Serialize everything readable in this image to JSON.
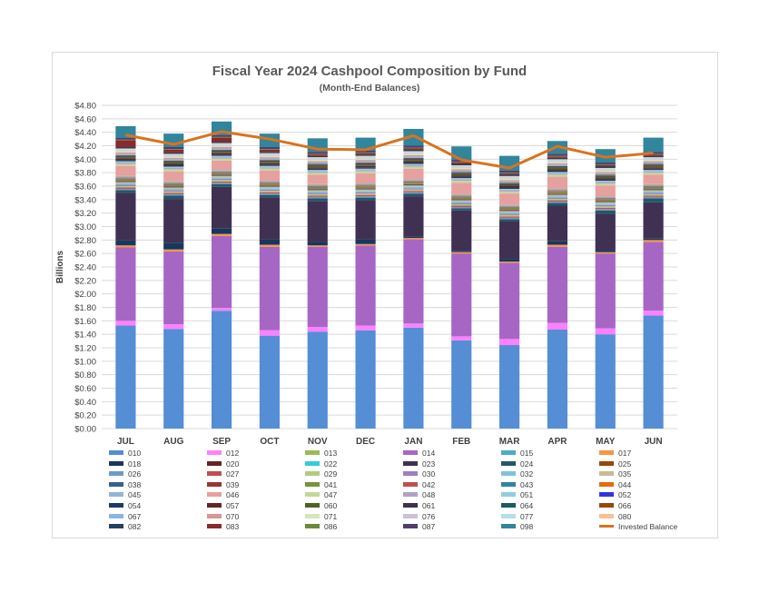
{
  "chart_data": {
    "type": "bar",
    "stacked": true,
    "title": "Fiscal Year 2024 Cashpool Composition by Fund",
    "subtitle": "(Month-End Balances)",
    "ylabel": "Billions",
    "xlabel": "",
    "ylim": [
      0,
      4.8
    ],
    "ytick_step": 0.2,
    "yticks": [
      "$0.00",
      "$0.20",
      "$0.40",
      "$0.60",
      "$0.80",
      "$1.00",
      "$1.20",
      "$1.40",
      "$1.60",
      "$1.80",
      "$2.00",
      "$2.20",
      "$2.40",
      "$2.60",
      "$2.80",
      "$3.00",
      "$3.20",
      "$3.40",
      "$3.60",
      "$3.80",
      "$4.00",
      "$4.20",
      "$4.40",
      "$4.60",
      "$4.80"
    ],
    "grid": true,
    "legend_position": "bottom",
    "categories": [
      "JUL",
      "AUG",
      "SEP",
      "OCT",
      "NOV",
      "DEC",
      "JAN",
      "FEB",
      "MAR",
      "APR",
      "MAY",
      "JUN"
    ],
    "series": [
      {
        "name": "010",
        "color": "#558ed5",
        "values": [
          1.53,
          1.48,
          1.75,
          1.38,
          1.44,
          1.46,
          1.5,
          1.31,
          1.24,
          1.47,
          1.4,
          1.68
        ]
      },
      {
        "name": "012",
        "color": "#ff80ff",
        "values": [
          0.07,
          0.07,
          0.04,
          0.08,
          0.07,
          0.07,
          0.06,
          0.06,
          0.09,
          0.1,
          0.09,
          0.07
        ]
      },
      {
        "name": "013",
        "color": "#9bbb59",
        "values": [
          0,
          0,
          0,
          0,
          0,
          0,
          0,
          0,
          0,
          0,
          0,
          0
        ]
      },
      {
        "name": "014",
        "color": "#a667c4",
        "values": [
          1.09,
          1.08,
          1.07,
          1.24,
          1.19,
          1.19,
          1.25,
          1.23,
          1.13,
          1.13,
          1.11,
          1.02
        ]
      },
      {
        "name": "015",
        "color": "#4bacc6",
        "values": [
          0,
          0,
          0,
          0,
          0,
          0,
          0,
          0,
          0,
          0,
          0,
          0
        ]
      },
      {
        "name": "017",
        "color": "#f79646",
        "values": [
          0.03,
          0.03,
          0.03,
          0.03,
          0.02,
          0.02,
          0.02,
          0.02,
          0.02,
          0.03,
          0.02,
          0.03
        ]
      },
      {
        "name": "018",
        "color": "#17375e",
        "values": [
          0.08,
          0.1,
          0.08,
          0.08,
          0.05,
          0.07,
          0.02,
          0.02,
          0.04,
          0.05,
          0.03,
          0.02
        ]
      },
      {
        "name": "020",
        "color": "#632523",
        "values": [
          0,
          0,
          0,
          0,
          0,
          0,
          0,
          0,
          0,
          0,
          0,
          0
        ]
      },
      {
        "name": "022",
        "color": "#33ccdd",
        "values": [
          0,
          0,
          0,
          0,
          0,
          0,
          0,
          0,
          0,
          0,
          0,
          0
        ]
      },
      {
        "name": "023",
        "color": "#403152",
        "values": [
          0.7,
          0.65,
          0.62,
          0.62,
          0.61,
          0.58,
          0.6,
          0.6,
          0.56,
          0.53,
          0.54,
          0.54
        ]
      },
      {
        "name": "024",
        "color": "#215968",
        "values": [
          0.04,
          0.05,
          0.04,
          0.04,
          0.04,
          0.04,
          0.04,
          0.03,
          0.03,
          0.04,
          0.05,
          0.06
        ]
      },
      {
        "name": "025",
        "color": "#974806",
        "values": [
          0,
          0,
          0,
          0,
          0,
          0,
          0,
          0,
          0,
          0,
          0,
          0
        ]
      },
      {
        "name": "026",
        "color": "#7199c9",
        "values": [
          0.02,
          0.02,
          0.02,
          0.02,
          0.02,
          0.02,
          0.02,
          0.02,
          0.02,
          0.02,
          0.02,
          0.02
        ]
      },
      {
        "name": "027",
        "color": "#c0504d",
        "values": [
          0.02,
          0.02,
          0.02,
          0.02,
          0.02,
          0.02,
          0.02,
          0.02,
          0.02,
          0.02,
          0.02,
          0.02
        ]
      },
      {
        "name": "029",
        "color": "#b0cc80",
        "values": [
          0.02,
          0.02,
          0.02,
          0.02,
          0.02,
          0.02,
          0.02,
          0.02,
          0.02,
          0.02,
          0.02,
          0.02
        ]
      },
      {
        "name": "030",
        "color": "#9e7fbf",
        "values": [
          0.02,
          0.02,
          0.02,
          0.02,
          0.02,
          0.02,
          0.02,
          0.02,
          0.02,
          0.02,
          0.02,
          0.02
        ]
      },
      {
        "name": "032",
        "color": "#7fc4d6",
        "values": [
          0.02,
          0.02,
          0.02,
          0.02,
          0.02,
          0.02,
          0.02,
          0.02,
          0.02,
          0.02,
          0.02,
          0.02
        ]
      },
      {
        "name": "035",
        "color": "#c4bd97",
        "values": [
          0.02,
          0.02,
          0.02,
          0.02,
          0.02,
          0.02,
          0.02,
          0.02,
          0.02,
          0.02,
          0.02,
          0.02
        ]
      },
      {
        "name": "038",
        "color": "#366092",
        "values": [
          0.01,
          0.01,
          0.01,
          0.01,
          0.01,
          0.01,
          0.01,
          0.01,
          0.01,
          0.01,
          0.01,
          0.01
        ]
      },
      {
        "name": "039",
        "color": "#953735",
        "values": [
          0.01,
          0.01,
          0.01,
          0.01,
          0.01,
          0.01,
          0.01,
          0.01,
          0.01,
          0.01,
          0.01,
          0.01
        ]
      },
      {
        "name": "041",
        "color": "#77933c",
        "values": [
          0.02,
          0.02,
          0.02,
          0.02,
          0.02,
          0.02,
          0.02,
          0.02,
          0.02,
          0.02,
          0.02,
          0.02
        ]
      },
      {
        "name": "042",
        "color": "#c0504d",
        "values": [
          0.01,
          0.01,
          0.01,
          0.01,
          0.01,
          0.01,
          0.01,
          0.01,
          0.01,
          0.01,
          0.01,
          0.01
        ]
      },
      {
        "name": "043",
        "color": "#31859c",
        "values": [
          0.01,
          0.01,
          0.01,
          0.01,
          0.01,
          0.01,
          0.01,
          0.01,
          0.01,
          0.01,
          0.01,
          0.01
        ]
      },
      {
        "name": "044",
        "color": "#e46c0a",
        "values": [
          0.01,
          0.01,
          0.01,
          0.01,
          0.01,
          0.01,
          0.01,
          0.01,
          0.01,
          0.01,
          0.01,
          0.01
        ]
      },
      {
        "name": "045",
        "color": "#95b3d7",
        "values": [
          0.02,
          0.02,
          0.02,
          0.02,
          0.02,
          0.02,
          0.02,
          0.02,
          0.02,
          0.02,
          0.02,
          0.02
        ]
      },
      {
        "name": "046",
        "color": "#e6a09e",
        "values": [
          0.15,
          0.15,
          0.14,
          0.15,
          0.14,
          0.15,
          0.16,
          0.17,
          0.17,
          0.18,
          0.16,
          0.14
        ]
      },
      {
        "name": "047",
        "color": "#c4d79b",
        "values": [
          0.03,
          0.03,
          0.03,
          0.03,
          0.03,
          0.03,
          0.03,
          0.03,
          0.03,
          0.03,
          0.03,
          0.03
        ]
      },
      {
        "name": "048",
        "color": "#b2a1c7",
        "values": [
          0.02,
          0.02,
          0.02,
          0.02,
          0.02,
          0.02,
          0.02,
          0.02,
          0.02,
          0.02,
          0.02,
          0.02
        ]
      },
      {
        "name": "051",
        "color": "#93cddd",
        "values": [
          0.02,
          0.02,
          0.02,
          0.02,
          0.02,
          0.02,
          0.02,
          0.02,
          0.02,
          0.02,
          0.02,
          0.02
        ]
      },
      {
        "name": "052",
        "color": "#3333dd",
        "values": [
          0,
          0,
          0,
          0,
          0,
          0,
          0,
          0,
          0,
          0,
          0,
          0
        ]
      },
      {
        "name": "054",
        "color": "#1f3864",
        "values": [
          0.02,
          0.02,
          0.02,
          0.02,
          0.02,
          0.02,
          0.02,
          0.02,
          0.02,
          0.02,
          0.02,
          0.02
        ]
      },
      {
        "name": "057",
        "color": "#632523",
        "values": [
          0.02,
          0.02,
          0.02,
          0.02,
          0.02,
          0.02,
          0.02,
          0.02,
          0.02,
          0.02,
          0.02,
          0.02
        ]
      },
      {
        "name": "060",
        "color": "#4f6228",
        "values": [
          0.02,
          0.02,
          0.02,
          0.02,
          0.02,
          0.02,
          0.02,
          0.02,
          0.02,
          0.02,
          0.02,
          0.02
        ]
      },
      {
        "name": "061",
        "color": "#3f3151",
        "values": [
          0.01,
          0.01,
          0.01,
          0.01,
          0.01,
          0.01,
          0.01,
          0.01,
          0.01,
          0.01,
          0.01,
          0.01
        ]
      },
      {
        "name": "064",
        "color": "#205867",
        "values": [
          0.01,
          0.01,
          0.01,
          0.01,
          0.01,
          0.01,
          0.01,
          0.01,
          0.01,
          0.01,
          0.01,
          0.01
        ]
      },
      {
        "name": "066",
        "color": "#984807",
        "values": [
          0.01,
          0.01,
          0.01,
          0.01,
          0.01,
          0.01,
          0.01,
          0.01,
          0.01,
          0.01,
          0.01,
          0.01
        ]
      },
      {
        "name": "067",
        "color": "#8db4e2",
        "values": [
          0.02,
          0.02,
          0.02,
          0.02,
          0.02,
          0.02,
          0.02,
          0.02,
          0.02,
          0.02,
          0.02,
          0.02
        ]
      },
      {
        "name": "070",
        "color": "#d99694",
        "values": [
          0.02,
          0.02,
          0.02,
          0.02,
          0.02,
          0.02,
          0.02,
          0.02,
          0.02,
          0.02,
          0.02,
          0.02
        ]
      },
      {
        "name": "071",
        "color": "#d7e4bc",
        "values": [
          0.02,
          0.02,
          0.02,
          0.02,
          0.02,
          0.02,
          0.02,
          0.02,
          0.02,
          0.02,
          0.02,
          0.02
        ]
      },
      {
        "name": "076",
        "color": "#ccc0da",
        "values": [
          0.01,
          0.01,
          0.01,
          0.01,
          0.01,
          0.01,
          0.01,
          0.01,
          0.01,
          0.01,
          0.01,
          0.01
        ]
      },
      {
        "name": "077",
        "color": "#b7dee8",
        "values": [
          0.02,
          0.02,
          0.02,
          0.02,
          0.02,
          0.02,
          0.02,
          0.02,
          0.02,
          0.02,
          0.02,
          0.02
        ]
      },
      {
        "name": "080",
        "color": "#fac090",
        "values": [
          0.01,
          0.01,
          0.01,
          0.01,
          0.01,
          0.01,
          0.01,
          0.01,
          0.01,
          0.01,
          0.01,
          0.01
        ]
      },
      {
        "name": "082",
        "color": "#254061",
        "values": [
          0.02,
          0.02,
          0.02,
          0.02,
          0.02,
          0.02,
          0.02,
          0.02,
          0.02,
          0.02,
          0.02,
          0.02
        ]
      },
      {
        "name": "083",
        "color": "#8b2a2a",
        "values": [
          0.1,
          0.04,
          0.06,
          0.03,
          0.02,
          0.02,
          0.02,
          0.02,
          0.02,
          0.02,
          0.02,
          0.02
        ]
      },
      {
        "name": "086",
        "color": "#6a8a3a",
        "values": [
          0.01,
          0.01,
          0.01,
          0.01,
          0.01,
          0.01,
          0.01,
          0.01,
          0.01,
          0.01,
          0.01,
          0.01
        ]
      },
      {
        "name": "087",
        "color": "#4f3d6e",
        "values": [
          0.03,
          0.03,
          0.03,
          0.03,
          0.03,
          0.03,
          0.03,
          0.03,
          0.03,
          0.03,
          0.03,
          0.03
        ]
      },
      {
        "name": "098",
        "color": "#31859c",
        "values": [
          0.17,
          0.2,
          0.2,
          0.2,
          0.2,
          0.19,
          0.25,
          0.2,
          0.22,
          0.19,
          0.2,
          0.21
        ]
      }
    ],
    "line_series": {
      "name": "Invested Balance",
      "color": "#d9731f",
      "values": [
        4.36,
        4.22,
        4.41,
        4.3,
        4.15,
        4.14,
        4.35,
        3.99,
        3.87,
        4.19,
        4.03,
        4.09
      ]
    }
  }
}
